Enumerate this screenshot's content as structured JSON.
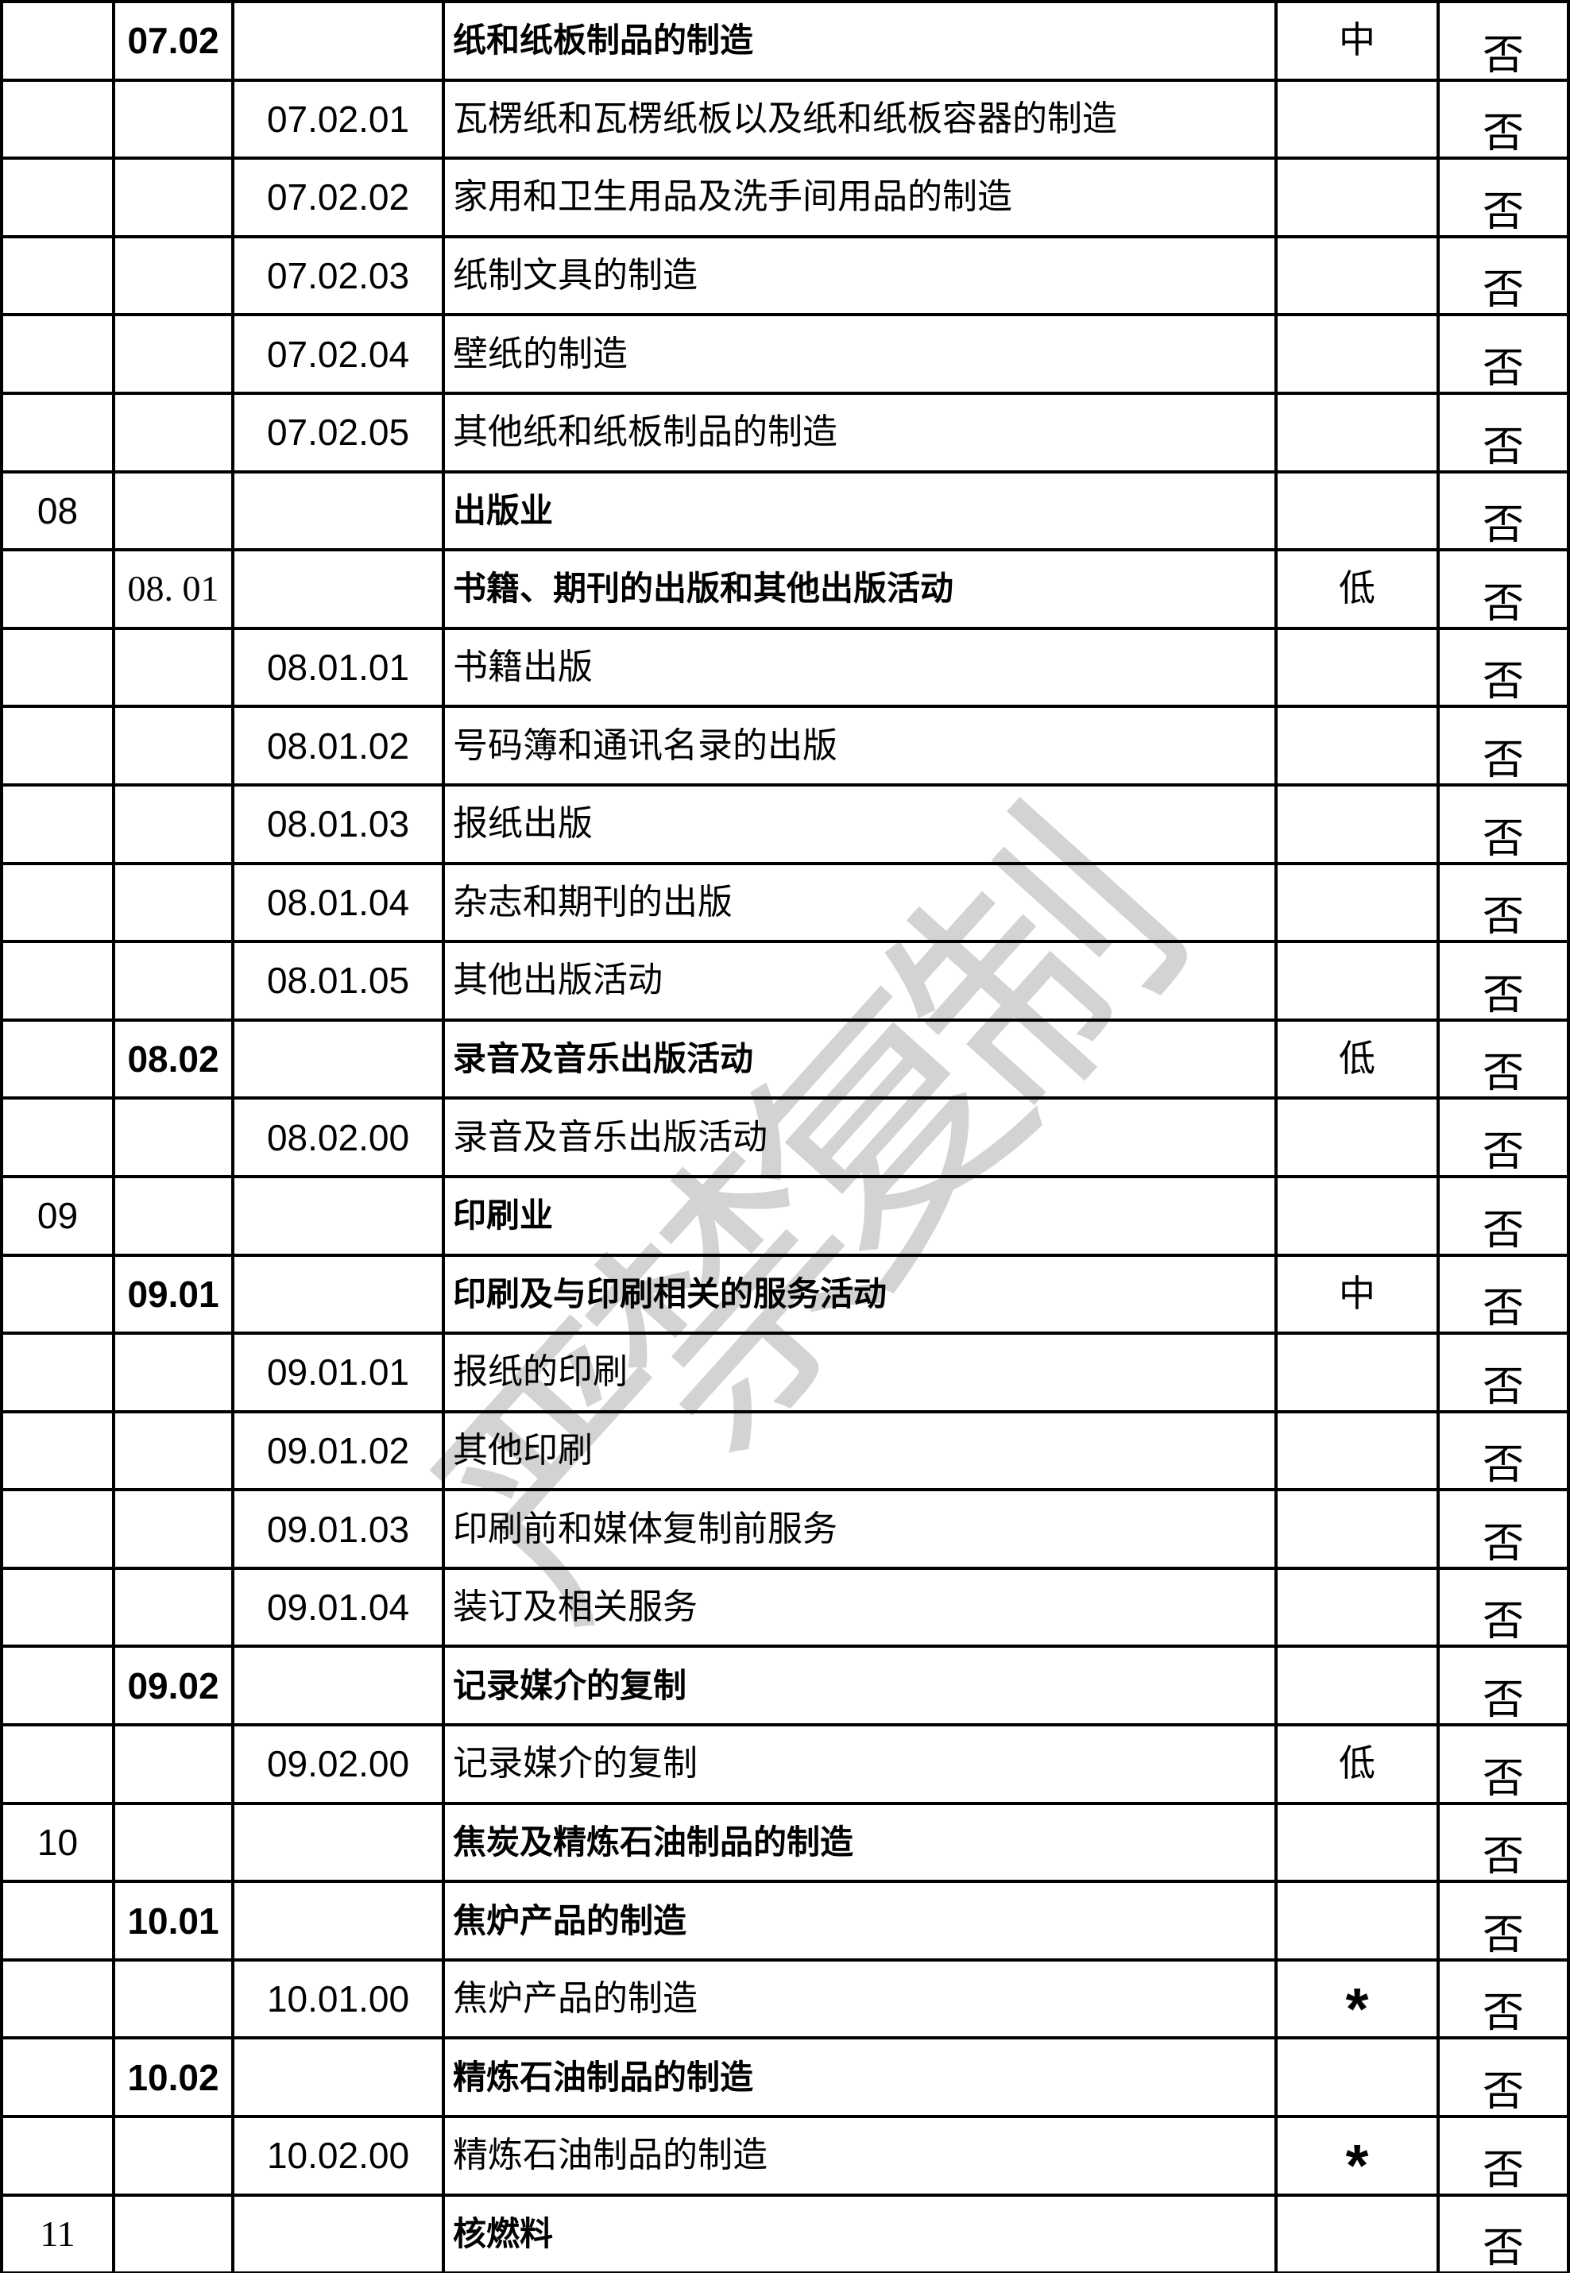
{
  "watermark": {
    "text": "严禁复制",
    "color": "#d3d3d3"
  },
  "table": {
    "rows": [
      {
        "code_l1": "",
        "code_l2": "07.02",
        "code_l3": "",
        "description": "纸和纸板制品的制造",
        "risk_level": "中",
        "answer": "否"
      },
      {
        "code_l1": "",
        "code_l2": "",
        "code_l3": "07.02.01",
        "description": "瓦楞纸和瓦楞纸板以及纸和纸板容器的制造",
        "risk_level": "",
        "answer": "否"
      },
      {
        "code_l1": "",
        "code_l2": "",
        "code_l3": "07.02.02",
        "description": "家用和卫生用品及洗手间用品的制造",
        "risk_level": "",
        "answer": "否"
      },
      {
        "code_l1": "",
        "code_l2": "",
        "code_l3": "07.02.03",
        "description": "纸制文具的制造",
        "risk_level": "",
        "answer": "否"
      },
      {
        "code_l1": "",
        "code_l2": "",
        "code_l3": "07.02.04",
        "description": "壁纸的制造",
        "risk_level": "",
        "answer": "否"
      },
      {
        "code_l1": "",
        "code_l2": "",
        "code_l3": "07.02.05",
        "description": "其他纸和纸板制品的制造",
        "risk_level": "",
        "answer": "否"
      },
      {
        "code_l1": "08",
        "code_l2": "",
        "code_l3": "",
        "description": "出版业",
        "risk_level": "",
        "answer": "否"
      },
      {
        "code_l1": "",
        "code_l2": "08. 01",
        "code_l3": "",
        "description": "书籍、期刊的出版和其他出版活动",
        "risk_level": "低",
        "answer": "否",
        "serif_code": true
      },
      {
        "code_l1": "",
        "code_l2": "",
        "code_l3": "08.01.01",
        "description": "书籍出版",
        "risk_level": "",
        "answer": "否"
      },
      {
        "code_l1": "",
        "code_l2": "",
        "code_l3": "08.01.02",
        "description": "号码簿和通讯名录的出版",
        "risk_level": "",
        "answer": "否"
      },
      {
        "code_l1": "",
        "code_l2": "",
        "code_l3": "08.01.03",
        "description": "报纸出版",
        "risk_level": "",
        "answer": "否"
      },
      {
        "code_l1": "",
        "code_l2": "",
        "code_l3": "08.01.04",
        "description": "杂志和期刊的出版",
        "risk_level": "",
        "answer": "否"
      },
      {
        "code_l1": "",
        "code_l2": "",
        "code_l3": "08.01.05",
        "description": "其他出版活动",
        "risk_level": "",
        "answer": "否"
      },
      {
        "code_l1": "",
        "code_l2": "08.02",
        "code_l3": "",
        "description": "录音及音乐出版活动",
        "risk_level": "低",
        "answer": "否"
      },
      {
        "code_l1": "",
        "code_l2": "",
        "code_l3": "08.02.00",
        "description": "录音及音乐出版活动",
        "risk_level": "",
        "answer": "否"
      },
      {
        "code_l1": "09",
        "code_l2": "",
        "code_l3": "",
        "description": "印刷业",
        "risk_level": "",
        "answer": "否"
      },
      {
        "code_l1": "",
        "code_l2": "09.01",
        "code_l3": "",
        "description": "印刷及与印刷相关的服务活动",
        "risk_level": "中",
        "answer": "否"
      },
      {
        "code_l1": "",
        "code_l2": "",
        "code_l3": "09.01.01",
        "description": "报纸的印刷",
        "risk_level": "",
        "answer": "否"
      },
      {
        "code_l1": "",
        "code_l2": "",
        "code_l3": "09.01.02",
        "description": "其他印刷",
        "risk_level": "",
        "answer": "否"
      },
      {
        "code_l1": "",
        "code_l2": "",
        "code_l3": "09.01.03",
        "description": "印刷前和媒体复制前服务",
        "risk_level": "",
        "answer": "否"
      },
      {
        "code_l1": "",
        "code_l2": "",
        "code_l3": "09.01.04",
        "description": "装订及相关服务",
        "risk_level": "",
        "answer": "否"
      },
      {
        "code_l1": "",
        "code_l2": "09.02",
        "code_l3": "",
        "description": "记录媒介的复制",
        "risk_level": "",
        "answer": "否"
      },
      {
        "code_l1": "",
        "code_l2": "",
        "code_l3": "09.02.00",
        "description": "记录媒介的复制",
        "risk_level": "低",
        "answer": "否"
      },
      {
        "code_l1": "10",
        "code_l2": "",
        "code_l3": "",
        "description": "焦炭及精炼石油制品的制造",
        "risk_level": "",
        "answer": "否"
      },
      {
        "code_l1": "",
        "code_l2": "10.01",
        "code_l3": "",
        "description": "焦炉产品的制造",
        "risk_level": "",
        "answer": "否"
      },
      {
        "code_l1": "",
        "code_l2": "",
        "code_l3": "10.01.00",
        "description": "焦炉产品的制造",
        "risk_level": "*",
        "answer": "否"
      },
      {
        "code_l1": "",
        "code_l2": "10.02",
        "code_l3": "",
        "description": "精炼石油制品的制造",
        "risk_level": "",
        "answer": "否"
      },
      {
        "code_l1": "",
        "code_l2": "",
        "code_l3": "10.02.00",
        "description": "精炼石油制品的制造",
        "risk_level": "*",
        "answer": "否"
      },
      {
        "code_l1": "11",
        "code_l2": "",
        "code_l3": "",
        "description": "核燃料",
        "risk_level": "",
        "answer": "否",
        "serif_code": true
      }
    ]
  }
}
